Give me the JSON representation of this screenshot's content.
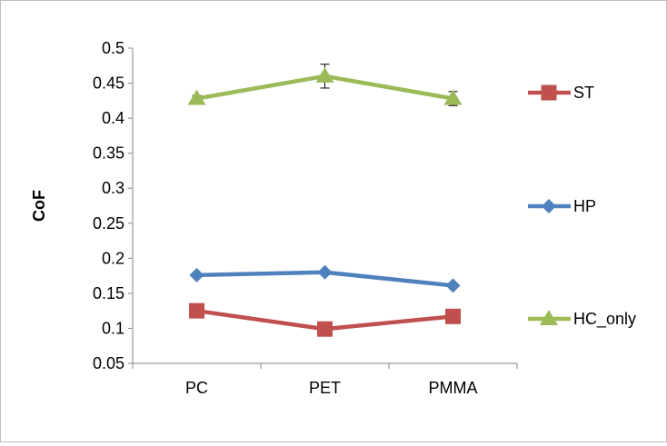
{
  "chart_data": {
    "type": "line",
    "title": "",
    "xlabel": "",
    "ylabel": "CoF",
    "categories": [
      "PC",
      "PET",
      "PMMA"
    ],
    "ylim": [
      0.05,
      0.5
    ],
    "yticks": [
      0.05,
      0.1,
      0.15,
      0.2,
      0.25,
      0.3,
      0.35,
      0.4,
      0.45,
      0.5
    ],
    "ytick_labels": [
      "0.05",
      "0.1",
      "0.15",
      "0.2",
      "0.25",
      "0.3",
      "0.35",
      "0.4",
      "0.45",
      "0.5"
    ],
    "grid": false,
    "legend": "right",
    "series": [
      {
        "name": "ST",
        "values": [
          0.125,
          0.099,
          0.117
        ],
        "color": "#c0504d",
        "marker": "square"
      },
      {
        "name": "HP",
        "values": [
          0.176,
          0.18,
          0.161
        ],
        "color": "#4f81bd",
        "marker": "diamond"
      },
      {
        "name": "HC_only",
        "values": [
          0.428,
          0.46,
          0.428
        ],
        "color": "#9bbb59",
        "marker": "triangle",
        "error": [
          0.004,
          0.017,
          0.01
        ]
      }
    ]
  }
}
